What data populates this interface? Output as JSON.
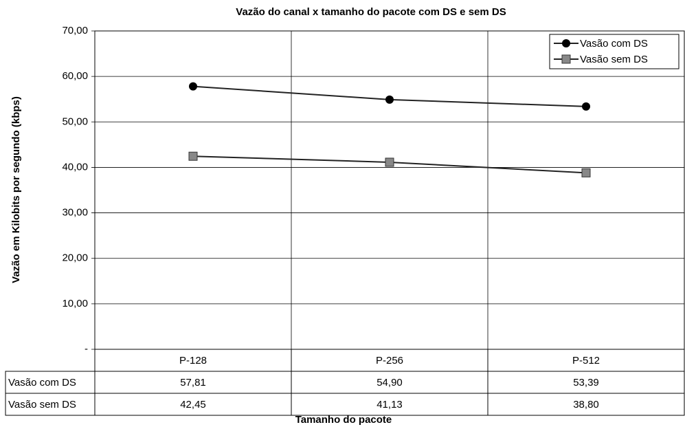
{
  "chart_data": {
    "type": "line",
    "title": "Vazão do canal x tamanho do pacote com DS e sem DS",
    "x_label": "Tamanho do pacote",
    "y_label": "Vazão em Kilobits por segundo (kbps)",
    "categories": [
      "P-128",
      "P-256",
      "P-512"
    ],
    "series": [
      {
        "name": "Vasão com DS",
        "color": "#000000",
        "marker": "circle",
        "values": [
          57.81,
          54.9,
          53.39
        ],
        "value_labels": [
          "57,81",
          "54,90",
          "53,39"
        ]
      },
      {
        "name": "Vasão sem DS",
        "color": "#888888",
        "marker": "square",
        "values": [
          42.45,
          41.13,
          38.8
        ],
        "value_labels": [
          "42,45",
          "41,13",
          "38,80"
        ]
      }
    ],
    "ylim": [
      0,
      70
    ],
    "yticks": [
      {
        "value": 0,
        "label": "-"
      },
      {
        "value": 10,
        "label": "10,00"
      },
      {
        "value": 20,
        "label": "20,00"
      },
      {
        "value": 30,
        "label": "30,00"
      },
      {
        "value": 40,
        "label": "40,00"
      },
      {
        "value": 50,
        "label": "50,00"
      },
      {
        "value": 60,
        "label": "60,00"
      },
      {
        "value": 70,
        "label": "70,00"
      }
    ],
    "grid": true,
    "legend": "top-right"
  }
}
